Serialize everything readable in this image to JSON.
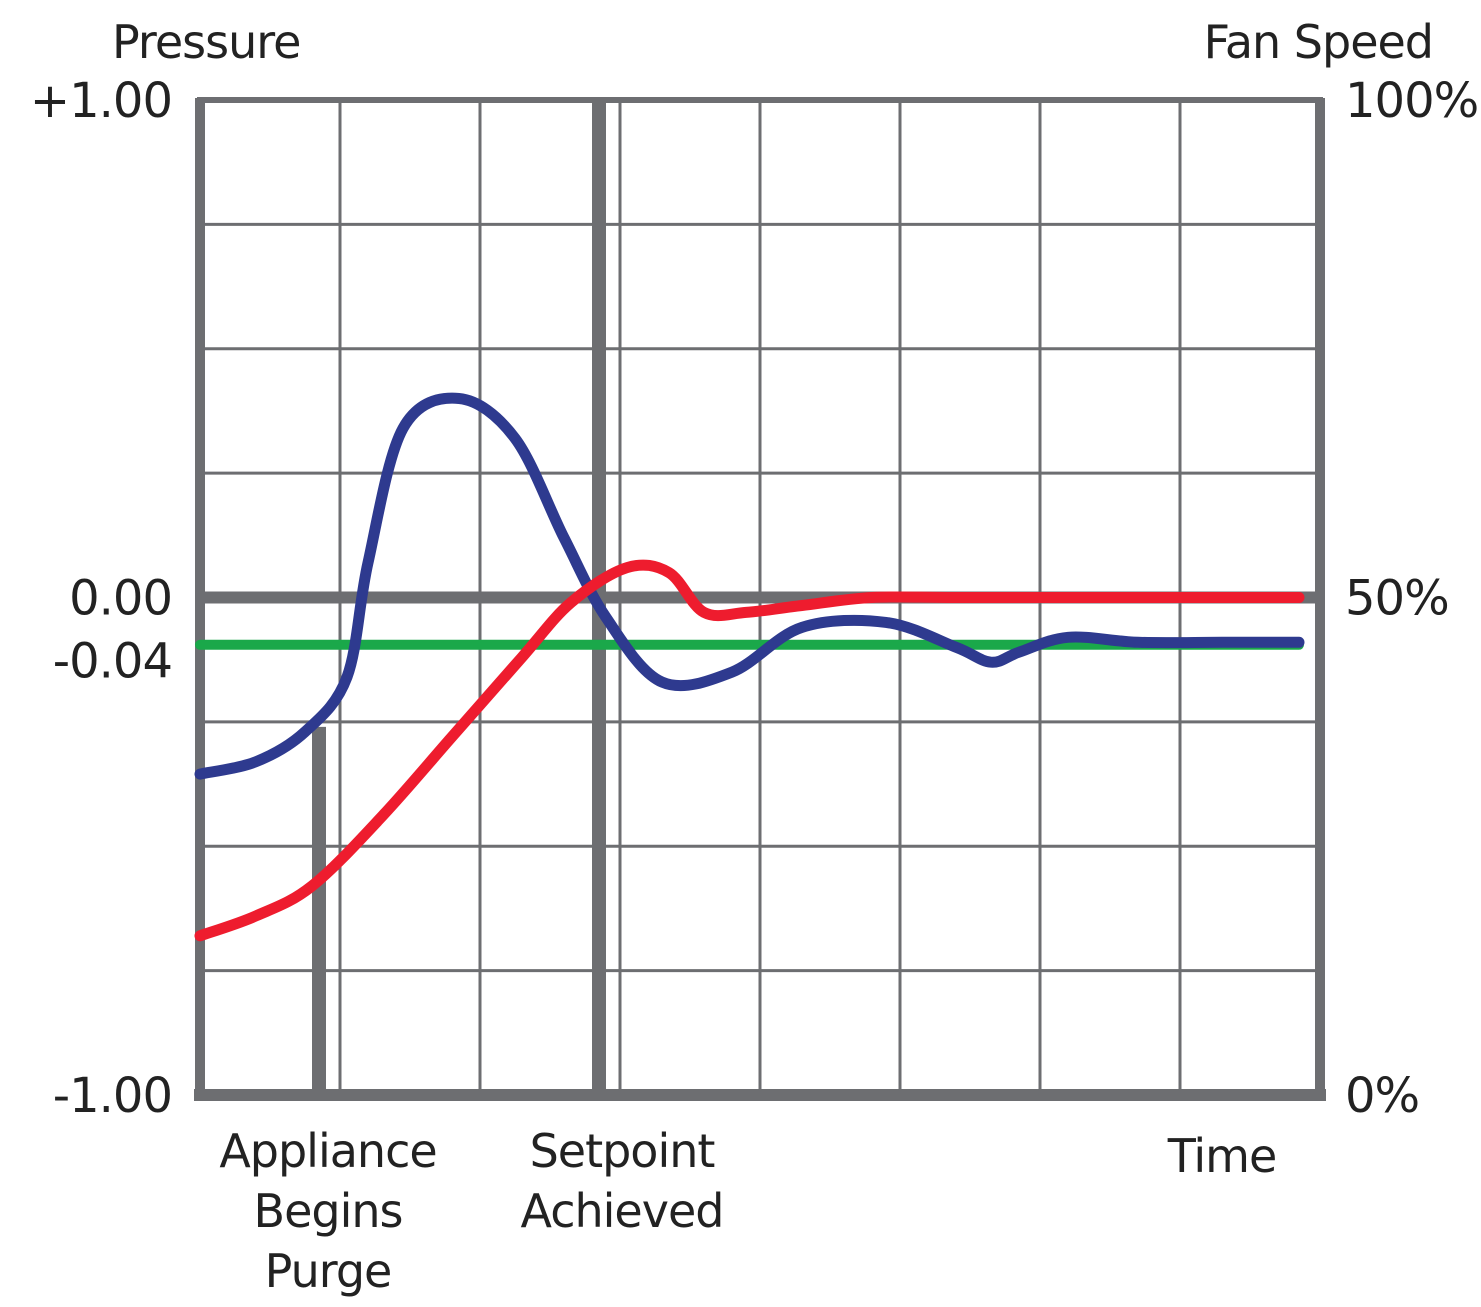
{
  "chart_data": {
    "type": "line",
    "y_left_label": "Pressure",
    "y_right_label": "Fan Speed",
    "x_label": "Time",
    "ylim": [
      -1.0,
      1.0
    ],
    "y_left_ticks": [
      {
        "value": 1.0,
        "label": "+1.00"
      },
      {
        "value": 0.0,
        "label": "0.00"
      },
      {
        "value": -0.04,
        "label": "-0.04"
      },
      {
        "value": -1.0,
        "label": "-1.00"
      }
    ],
    "y_right_ticks": [
      {
        "value": 100,
        "label": "100%"
      },
      {
        "value": 50,
        "label": "50%"
      },
      {
        "value": 0,
        "label": "0%"
      }
    ],
    "xlim": [
      0,
      8
    ],
    "grid": true,
    "events": [
      {
        "x": 0.85,
        "lines": [
          "Appliance",
          "Begins",
          "Purge"
        ]
      },
      {
        "x": 2.85,
        "lines": [
          "Setpoint",
          "Achieved"
        ]
      }
    ],
    "colors": {
      "pressure": "#2e3a8f",
      "fan_speed": "#ee1c2e",
      "setpoint": "#1aa84a",
      "grid": "#6d6e71"
    },
    "series": [
      {
        "key": "pressure",
        "axis": "left",
        "x": [
          0,
          0.4,
          0.75,
          1.05,
          1.2,
          1.45,
          1.85,
          2.25,
          2.6,
          2.9,
          3.3,
          3.8,
          4.3,
          4.9,
          5.4,
          5.65,
          5.85,
          6.2,
          6.7,
          7.3,
          7.85
        ],
        "y": [
          -0.355,
          -0.33,
          -0.27,
          -0.16,
          0.07,
          0.34,
          0.4,
          0.32,
          0.12,
          -0.04,
          -0.17,
          -0.15,
          -0.06,
          -0.05,
          -0.1,
          -0.13,
          -0.11,
          -0.08,
          -0.09,
          -0.09,
          -0.09
        ]
      },
      {
        "key": "fan_speed",
        "axis": "right",
        "x": [
          0,
          0.4,
          0.8,
          1.3,
          1.8,
          2.3,
          2.65,
          3.05,
          3.35,
          3.6,
          3.9,
          4.3,
          4.8,
          5.4,
          6.5,
          7.85
        ],
        "y": [
          16,
          18,
          21,
          28,
          36,
          44,
          49.5,
          53,
          52.5,
          48.5,
          48.5,
          49.2,
          50,
          50,
          50,
          50
        ]
      },
      {
        "key": "setpoint",
        "axis": "left",
        "x": [
          0,
          7.85
        ],
        "y": [
          -0.095,
          -0.095
        ]
      }
    ]
  }
}
